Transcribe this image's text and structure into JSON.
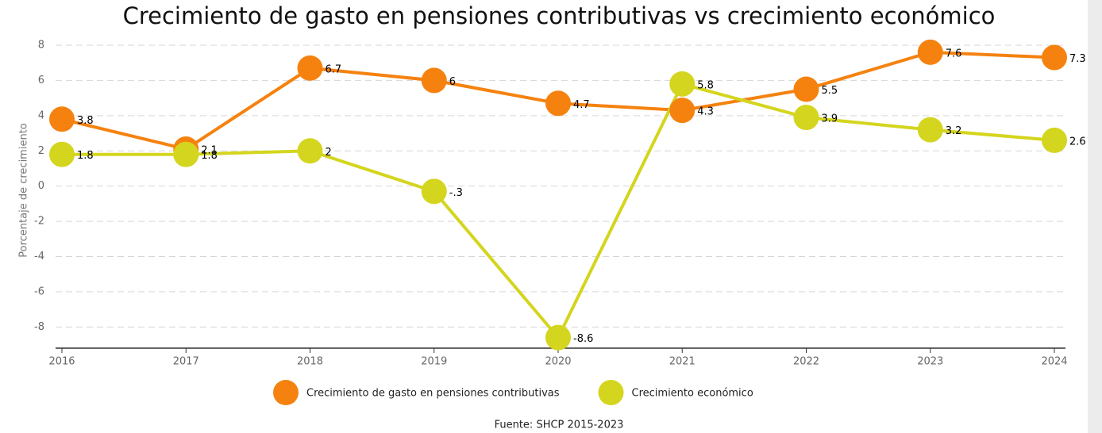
{
  "chart_data": {
    "type": "line",
    "title": "Crecimiento de gasto en pensiones contributivas vs crecimiento económico",
    "y_label": "Porcentaje de crecimiento",
    "source": "Fuente: SHCP 2015-2023",
    "categories": [
      "2016",
      "2017",
      "2018",
      "2019",
      "2020",
      "2021",
      "2022",
      "2023",
      "2024"
    ],
    "series": [
      {
        "name": "Crecimiento de gasto en pensiones contributivas",
        "color": "#f5820f",
        "values": [
          3.8,
          2.1,
          6.7,
          6,
          4.7,
          4.3,
          5.5,
          7.6,
          7.3
        ]
      },
      {
        "name": "Crecimiento económico",
        "color": "#d4d51e",
        "values": [
          1.8,
          1.8,
          2,
          -0.3,
          -8.6,
          5.8,
          3.9,
          3.2,
          2.6
        ],
        "value_labels": [
          "1.8",
          "1.8",
          "2",
          "-.3",
          "-8.6",
          "5.8",
          "3.9",
          "3.2",
          "2.6"
        ]
      }
    ],
    "ylim": [
      -9.2,
      8
    ],
    "yticks": [
      -8,
      -6,
      -4,
      -2,
      0,
      2,
      4,
      6,
      8
    ],
    "grid": true,
    "legend": "bottom"
  }
}
